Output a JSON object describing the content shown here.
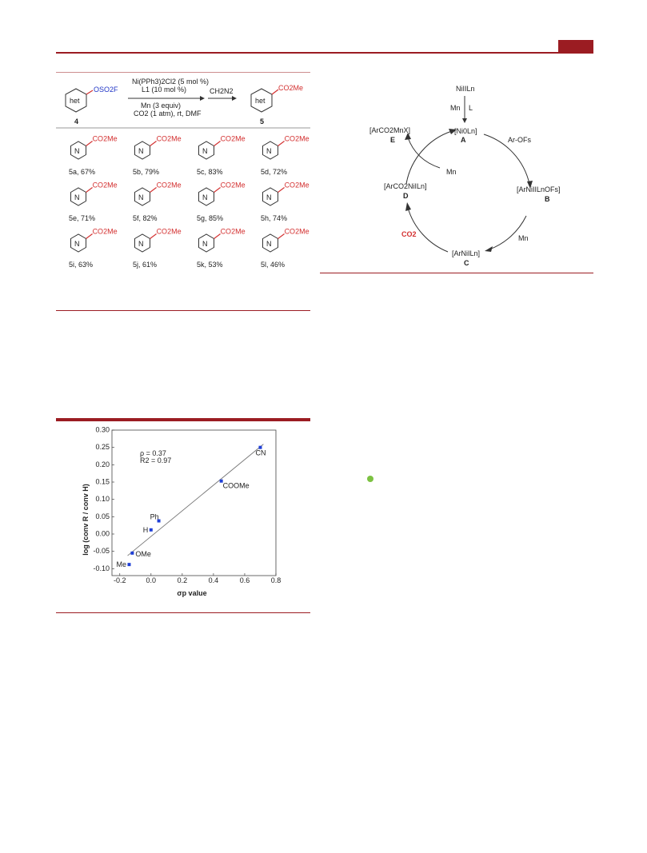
{
  "scheme": {
    "reagents": {
      "line1": "Ni(PPh3)2Cl2 (5 mol %)",
      "line2": "L1 (10 mol %)",
      "line3": "Mn (3 equiv)",
      "line4": "CO2 (1 atm), rt, DMF",
      "second_step": "CH2N2"
    },
    "start_label": "4",
    "product_label": "5",
    "het": "het",
    "start_group": "OSO2F",
    "product_group": "CO2Me",
    "compounds": [
      {
        "id": "5a",
        "yield": "67%",
        "caption": "5a, 67%"
      },
      {
        "id": "5b",
        "yield": "79%",
        "caption": "5b, 79%"
      },
      {
        "id": "5c",
        "yield": "83%",
        "caption": "5c, 83%"
      },
      {
        "id": "5d",
        "yield": "72%",
        "caption": "5d, 72%"
      },
      {
        "id": "5e",
        "yield": "71%",
        "caption": "5e, 71%"
      },
      {
        "id": "5f",
        "yield": "82%",
        "caption": "5f, 82%"
      },
      {
        "id": "5g",
        "yield": "85%",
        "caption": "5g, 85%"
      },
      {
        "id": "5h",
        "yield": "74%",
        "caption": "5h, 74%"
      },
      {
        "id": "5i",
        "yield": "63%",
        "caption": "5i, 63%"
      },
      {
        "id": "5j",
        "yield": "61%",
        "caption": "5j, 61%"
      },
      {
        "id": "5k",
        "yield": "53%",
        "caption": "5k, 53%"
      },
      {
        "id": "5l",
        "yield": "46%",
        "caption": "5l, 46%"
      }
    ]
  },
  "cycle": {
    "top": "NiIILn",
    "mn_reduce": "Mn",
    "ligand": "L",
    "A": "[Ni0Ln]",
    "A_id": "A",
    "B": "[ArNiIILnOFs]",
    "B_id": "B",
    "C": "[ArNiILn]",
    "C_id": "C",
    "D": "[ArCO2NiILn]",
    "D_id": "D",
    "E": "[ArCO2MnX]",
    "E_id": "E",
    "ar_ofs": "Ar-OFs",
    "co2": "CO2",
    "mn_right": "Mn",
    "mn_inner": "Mn"
  },
  "chart_data": {
    "type": "scatter",
    "xlabel": "σp value",
    "ylabel": "log (conv R / conv H)",
    "xlim": [
      -0.25,
      0.8
    ],
    "ylim": [
      -0.12,
      0.3
    ],
    "x_ticks": [
      -0.2,
      0.0,
      0.2,
      0.4,
      0.6,
      0.8
    ],
    "y_ticks": [
      -0.1,
      -0.05,
      0.0,
      0.05,
      0.1,
      0.15,
      0.2,
      0.25,
      0.3
    ],
    "points": [
      {
        "label": "Me",
        "x": -0.14,
        "y": -0.088
      },
      {
        "label": "OMe",
        "x": -0.12,
        "y": -0.055
      },
      {
        "label": "H",
        "x": 0.0,
        "y": 0.012
      },
      {
        "label": "Ph",
        "x": 0.05,
        "y": 0.038
      },
      {
        "label": "COOMe",
        "x": 0.45,
        "y": 0.153
      },
      {
        "label": "CN",
        "x": 0.7,
        "y": 0.25
      }
    ],
    "fit": {
      "slope": 0.37,
      "intercept": -0.007
    },
    "annotations": [
      "ρ = 0.37",
      "R2 = 0.97"
    ],
    "marker_color": "#1f3fd6",
    "fit_color": "#777777",
    "grid": false
  }
}
